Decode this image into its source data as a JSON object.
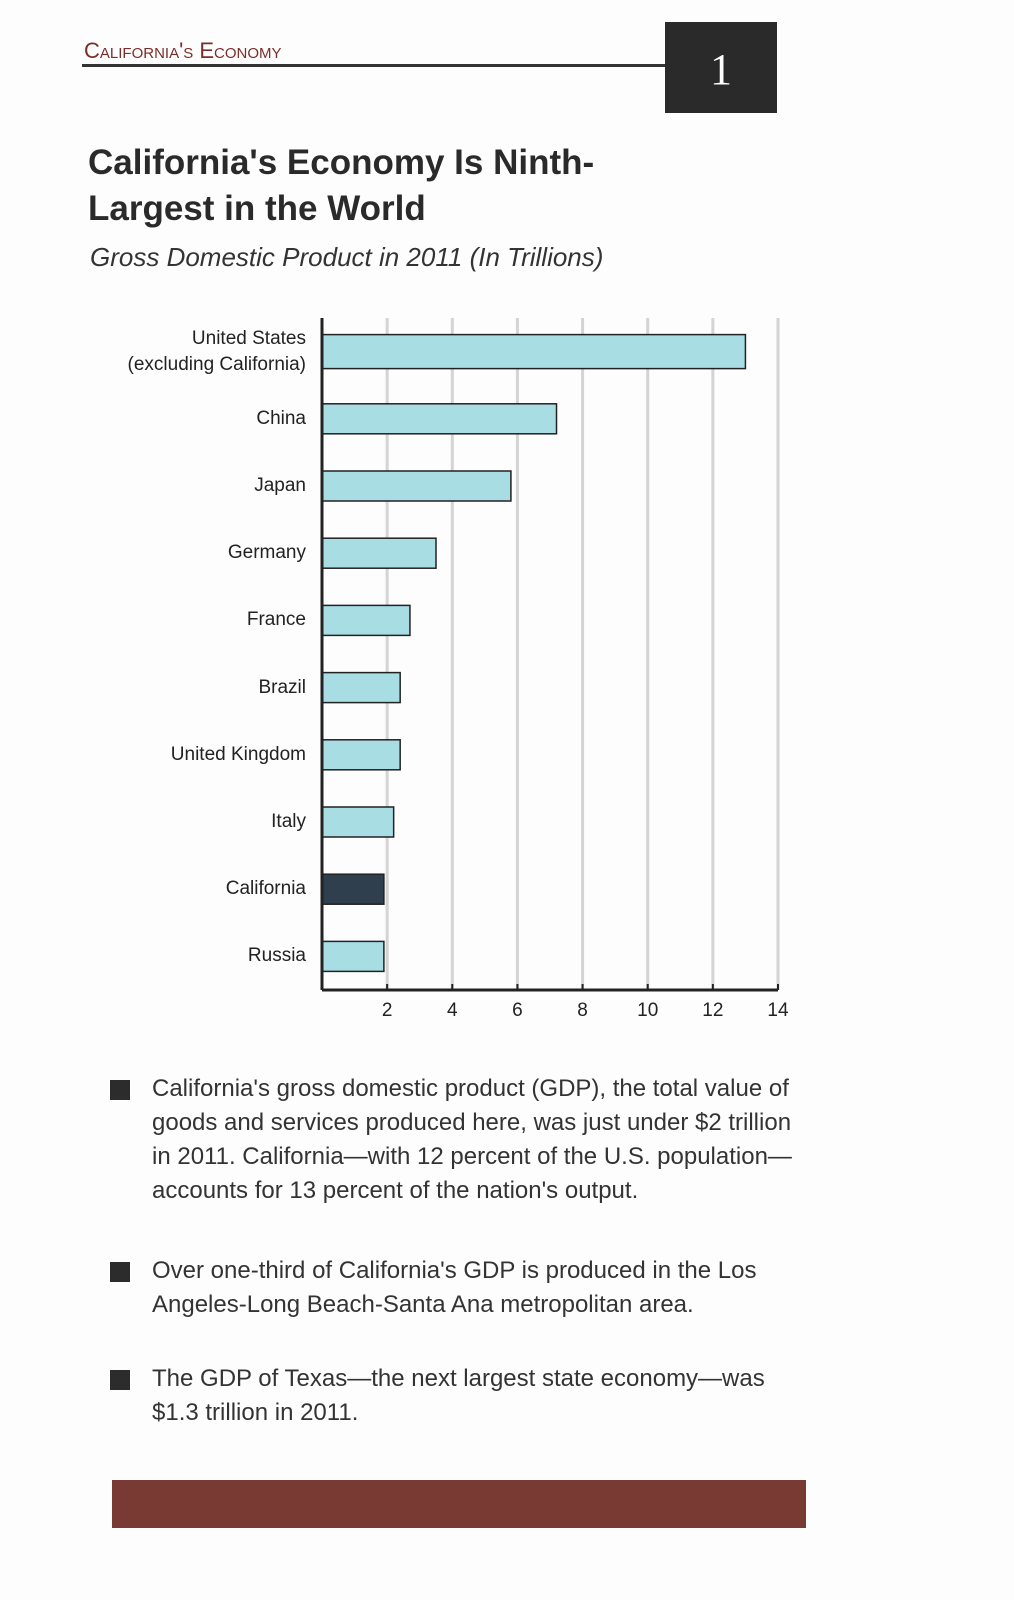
{
  "header": {
    "section": "California's Economy",
    "page_number": "1"
  },
  "chart_data": {
    "type": "bar",
    "orientation": "horizontal",
    "title": "California's Economy Is Ninth-Largest in the World",
    "subtitle": "Gross Domestic Product in 2011 (In Trillions)",
    "categories": [
      "United States\n(excluding California)",
      "China",
      "Japan",
      "Germany",
      "France",
      "Brazil",
      "United Kingdom",
      "Italy",
      "California",
      "Russia"
    ],
    "values": [
      13.0,
      7.2,
      5.8,
      3.5,
      2.7,
      2.4,
      2.4,
      2.2,
      1.9,
      1.9
    ],
    "colors": [
      "#a8dde4",
      "#a8dde4",
      "#a8dde4",
      "#a8dde4",
      "#a8dde4",
      "#a8dde4",
      "#a8dde4",
      "#a8dde4",
      "#2f3f4d",
      "#a8dde4"
    ],
    "xlim": [
      0,
      14
    ],
    "xticks": [
      2,
      4,
      6,
      8,
      10,
      12,
      14
    ],
    "grid": true
  },
  "bullets": [
    "California's gross domestic product (GDP), the total value of goods and services produced here, was just under $2 trillion in 2011. California—with 12 percent of the U.S. population—accounts for 13 percent of the nation's output.",
    "Over one-third of California's GDP is produced in the Los Angeles-Long Beach-Santa Ana metropolitan area.",
    "The GDP of Texas—the next largest state economy—was $1.3 trillion in 2011."
  ]
}
